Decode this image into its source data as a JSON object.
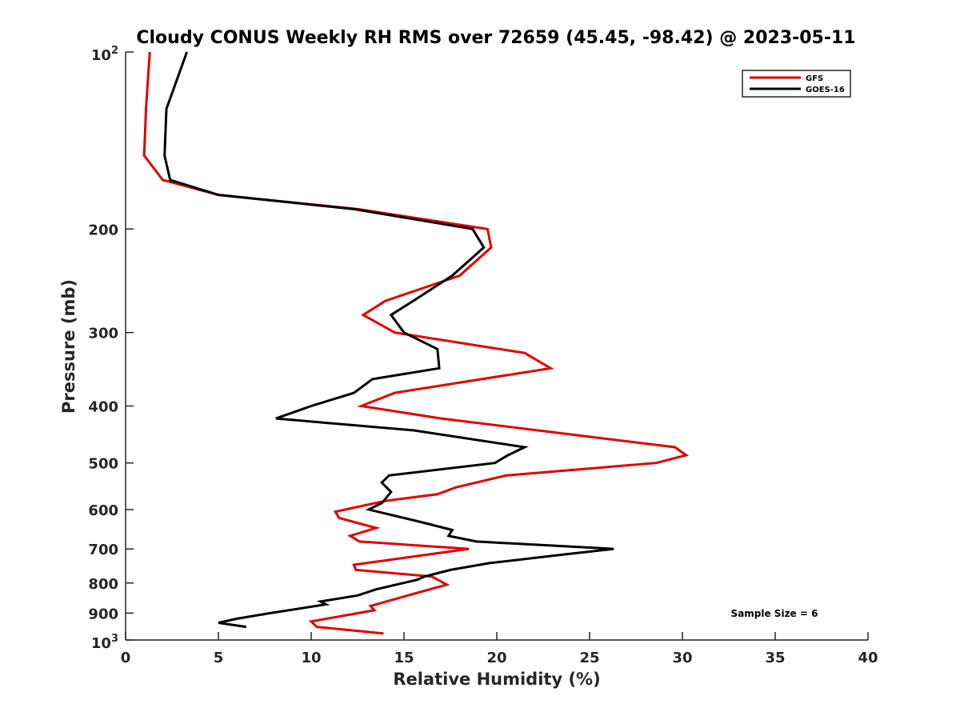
{
  "chart_data": {
    "type": "line",
    "title": "Cloudy CONUS Weekly RH RMS over 72659 (45.45, -98.42) @ 2023-05-11",
    "xlabel": "Relative Humidity (%)",
    "ylabel": "Pressure (mb)",
    "xlim": [
      0,
      40
    ],
    "ylim": [
      100,
      1000
    ],
    "y_scale": "log",
    "y_reversed": true,
    "x_ticks": [
      0,
      5,
      10,
      15,
      20,
      25,
      30,
      35,
      40
    ],
    "x_tick_labels": [
      "0",
      "5",
      "10",
      "15",
      "20",
      "25",
      "30",
      "35",
      "40"
    ],
    "y_ticks": [
      100,
      200,
      300,
      400,
      500,
      600,
      700,
      800,
      900,
      1000
    ],
    "y_tick_labels": [
      {
        "text": "10",
        "sup": "2"
      },
      {
        "text": "200"
      },
      {
        "text": "300"
      },
      {
        "text": "400"
      },
      {
        "text": "500"
      },
      {
        "text": "600"
      },
      {
        "text": "700"
      },
      {
        "text": "800"
      },
      {
        "text": "900"
      },
      {
        "text": "10",
        "sup": "3"
      }
    ],
    "grid": false,
    "legend_position": "top-right",
    "series": [
      {
        "name": "GFS",
        "color": "#e00000",
        "points": [
          [
            1.3,
            100
          ],
          [
            1.1,
            125
          ],
          [
            1.0,
            150
          ],
          [
            2.0,
            165
          ],
          [
            5.0,
            175
          ],
          [
            12.5,
            185
          ],
          [
            19.5,
            200
          ],
          [
            19.7,
            215
          ],
          [
            18.0,
            240
          ],
          [
            14.0,
            265
          ],
          [
            12.8,
            280
          ],
          [
            14.5,
            300
          ],
          [
            21.5,
            325
          ],
          [
            22.9,
            345
          ],
          [
            14.5,
            380
          ],
          [
            12.7,
            400
          ],
          [
            17.0,
            420
          ],
          [
            29.6,
            470
          ],
          [
            30.2,
            485
          ],
          [
            28.6,
            500
          ],
          [
            20.5,
            525
          ],
          [
            17.8,
            550
          ],
          [
            16.8,
            565
          ],
          [
            14.0,
            580
          ],
          [
            11.3,
            605
          ],
          [
            11.5,
            620
          ],
          [
            13.5,
            645
          ],
          [
            12.1,
            665
          ],
          [
            12.6,
            680
          ],
          [
            18.5,
            700
          ],
          [
            12.3,
            745
          ],
          [
            12.4,
            760
          ],
          [
            16.5,
            780
          ],
          [
            17.3,
            805
          ],
          [
            15.8,
            830
          ],
          [
            13.2,
            875
          ],
          [
            13.4,
            890
          ],
          [
            10.0,
            930
          ],
          [
            10.3,
            950
          ],
          [
            13.9,
            975
          ]
        ]
      },
      {
        "name": "GOES-16",
        "color": "#000000",
        "points": [
          [
            3.3,
            100
          ],
          [
            2.2,
            125
          ],
          [
            2.1,
            150
          ],
          [
            2.4,
            165
          ],
          [
            5.0,
            175
          ],
          [
            12.3,
            185
          ],
          [
            18.7,
            200
          ],
          [
            19.3,
            215
          ],
          [
            17.6,
            240
          ],
          [
            15.5,
            265
          ],
          [
            14.3,
            280
          ],
          [
            15.0,
            300
          ],
          [
            16.8,
            320
          ],
          [
            16.9,
            345
          ],
          [
            13.3,
            360
          ],
          [
            12.3,
            380
          ],
          [
            10.0,
            400
          ],
          [
            8.1,
            420
          ],
          [
            15.5,
            440
          ],
          [
            21.5,
            470
          ],
          [
            20.6,
            485
          ],
          [
            19.9,
            500
          ],
          [
            14.2,
            525
          ],
          [
            13.8,
            540
          ],
          [
            14.3,
            560
          ],
          [
            13.8,
            585
          ],
          [
            13.1,
            600
          ],
          [
            15.9,
            630
          ],
          [
            17.6,
            650
          ],
          [
            17.4,
            665
          ],
          [
            18.9,
            680
          ],
          [
            26.3,
            700
          ],
          [
            23.7,
            715
          ],
          [
            19.6,
            740
          ],
          [
            17.5,
            760
          ],
          [
            16.1,
            780
          ],
          [
            15.7,
            790
          ],
          [
            13.5,
            820
          ],
          [
            12.5,
            840
          ],
          [
            10.5,
            860
          ],
          [
            10.8,
            870
          ],
          [
            7.8,
            900
          ],
          [
            6.0,
            920
          ],
          [
            5.0,
            935
          ],
          [
            6.5,
            950
          ]
        ]
      }
    ],
    "annotations": [
      "Sample Size = 6"
    ]
  }
}
